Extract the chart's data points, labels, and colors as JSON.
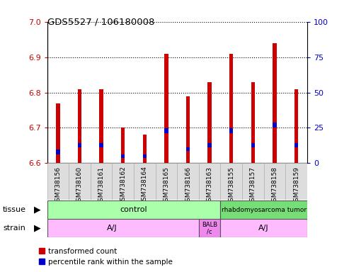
{
  "title": "GDS5527 / 106180008",
  "samples": [
    "GSM738156",
    "GSM738160",
    "GSM738161",
    "GSM738162",
    "GSM738164",
    "GSM738165",
    "GSM738166",
    "GSM738163",
    "GSM738155",
    "GSM738157",
    "GSM738158",
    "GSM738159"
  ],
  "red_values": [
    6.77,
    6.81,
    6.81,
    6.7,
    6.68,
    6.91,
    6.79,
    6.83,
    6.91,
    6.83,
    6.94,
    6.81
  ],
  "blue_values": [
    6.625,
    6.645,
    6.645,
    6.615,
    6.615,
    6.685,
    6.635,
    6.645,
    6.685,
    6.645,
    6.7,
    6.645
  ],
  "blue_heights": [
    0.013,
    0.012,
    0.012,
    0.01,
    0.01,
    0.013,
    0.01,
    0.012,
    0.013,
    0.012,
    0.015,
    0.012
  ],
  "ylim_left": [
    6.6,
    7.0
  ],
  "ylim_right": [
    0,
    100
  ],
  "yticks_left": [
    6.6,
    6.7,
    6.8,
    6.9,
    7.0
  ],
  "yticks_right": [
    0,
    25,
    50,
    75,
    100
  ],
  "bar_color_red": "#cc0000",
  "bar_color_blue": "#0000cc",
  "bar_width": 0.18,
  "baseline": 6.6,
  "legend_red": "transformed count",
  "legend_blue": "percentile rank within the sample",
  "bg_color": "#ffffff",
  "plot_bg": "#ffffff",
  "tick_color_left": "#cc0000",
  "tick_color_right": "#0000cc",
  "label_bg": "#dddddd",
  "tissue_control_color": "#aaffaa",
  "tissue_rhab_color": "#77dd77",
  "strain_aj_color": "#ffbbff",
  "strain_balb_color": "#ee88ee"
}
